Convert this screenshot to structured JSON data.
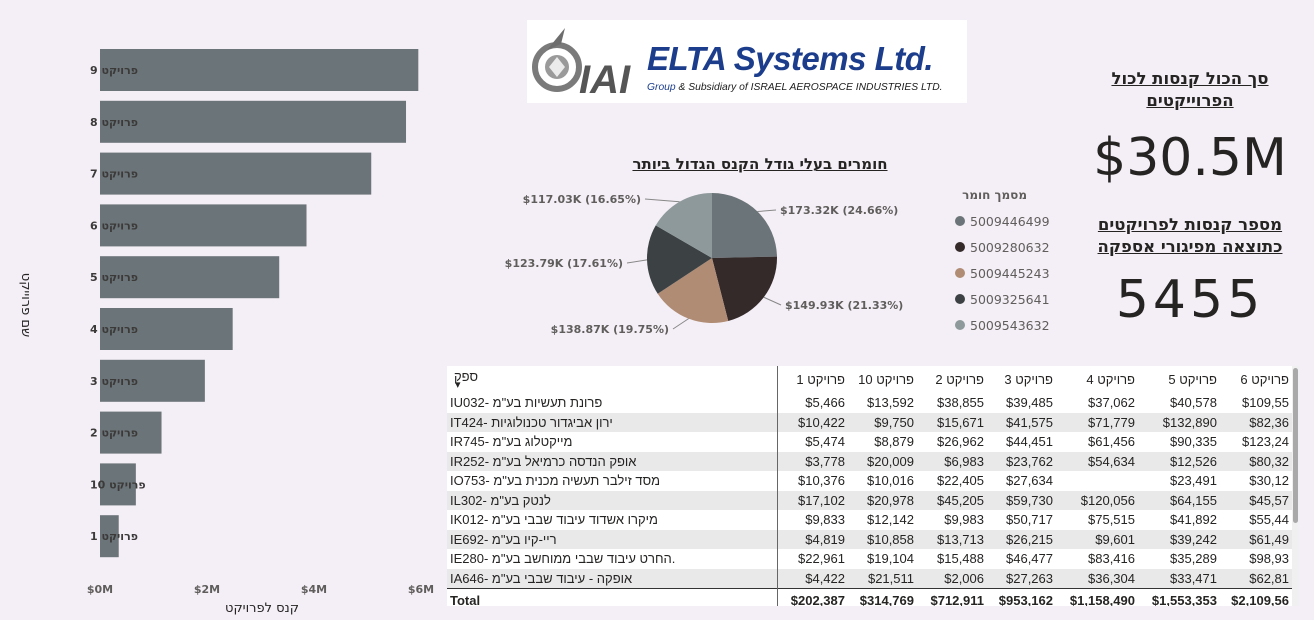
{
  "bar_chart": {
    "type": "bar",
    "orientation": "horizontal",
    "categories": [
      "פרויקט 9",
      "פרויקט 8",
      "פרויקט 7",
      "פרויקט 6",
      "פרויקט 5",
      "פרויקט 4",
      "פרויקט 3",
      "פרויקט 2",
      "פרויקט 10",
      "פרויקט 1"
    ],
    "values": [
      5.95,
      5.72,
      5.07,
      3.86,
      3.35,
      2.48,
      1.96,
      1.15,
      0.67,
      0.35
    ],
    "x_ticks": [
      "$0M",
      "$2M",
      "$4M",
      "$6M"
    ],
    "x_tick_values": [
      0,
      2,
      4,
      6
    ],
    "xlim": [
      0,
      6
    ],
    "xlabel": "קנס לפרויקט",
    "ylabel": "שם פרוייקט",
    "bar_color": "#6b7478"
  },
  "logo": {
    "mark": "IAI",
    "brand": "ELTA Systems Ltd.",
    "tagline_group": "Group",
    "tagline_rest": "& Subsidiary of ISRAEL AEROSPACE INDUSTRIES LTD."
  },
  "chart_data": {
    "type": "pie",
    "title": "חומרים בעלי גודל הקנס הגדול ביותר",
    "legend_title": "מסמך חומר",
    "slices": [
      {
        "name": "5009446499",
        "value": 173.32,
        "label": "$173.32K (24.66%)",
        "color": "#6b7478"
      },
      {
        "name": "5009280632",
        "value": 149.93,
        "label": "$149.93K (21.33%)",
        "color": "#342a2a"
      },
      {
        "name": "5009445243",
        "value": 138.87,
        "label": "$138.87K (19.75%)",
        "color": "#b08c74"
      },
      {
        "name": "5009325641",
        "value": 123.79,
        "label": "$123.79K (17.61%)",
        "color": "#3c4244"
      },
      {
        "name": "5009543632",
        "value": 117.03,
        "label": "$117.03K (16.65%)",
        "color": "#8e999c"
      }
    ]
  },
  "cards": {
    "total_fines_title": "סך הכול קנסות לכול הפרוייקטים",
    "total_fines_value": "$30.5M",
    "count_fines_title": "מספר קנסות לפרויקטים כתוצאה מפיגורי אספקה",
    "count_fines_value": "5455"
  },
  "table": {
    "columns": [
      "ספק",
      "פרויקט 1",
      "פרויקט 10",
      "פרויקט 2",
      "פרויקט 3",
      "פרויקט 4",
      "פרויקט 5",
      "פרויקט 6"
    ],
    "rows": [
      [
        "IU032- פרונת תעשיות בע\"מ",
        "$5,466",
        "$13,592",
        "$38,855",
        "$39,485",
        "$37,062",
        "$40,578",
        "$109,55"
      ],
      [
        "IT424- ירון אביגדור טכנולוגיות",
        "$10,422",
        "$9,750",
        "$15,671",
        "$41,575",
        "$71,779",
        "$132,890",
        "$82,36"
      ],
      [
        "IR745- מייקטלוג בע\"מ",
        "$5,474",
        "$8,879",
        "$26,962",
        "$44,451",
        "$61,456",
        "$90,335",
        "$123,24"
      ],
      [
        "IR252- אופק הנדסה כרמיאל בע\"מ",
        "$3,778",
        "$20,009",
        "$6,983",
        "$23,762",
        "$54,634",
        "$12,526",
        "$80,32"
      ],
      [
        "IO753- מסד זילבר תעשיה מכנית בע\"מ",
        "$10,376",
        "$10,016",
        "$22,405",
        "$27,634",
        "",
        "$23,491",
        "$30,12"
      ],
      [
        "IL302- לנטק בע\"מ",
        "$17,102",
        "$20,978",
        "$45,205",
        "$59,730",
        "$120,056",
        "$64,155",
        "$45,57"
      ],
      [
        "IK012- מיקרו אשדוד עיבוד שבבי בע\"מ",
        "$9,833",
        "$12,142",
        "$9,983",
        "$50,717",
        "$75,515",
        "$41,892",
        "$55,44"
      ],
      [
        "IE692- ריי-קיו בע\"מ",
        "$4,819",
        "$10,858",
        "$13,713",
        "$26,215",
        "$9,601",
        "$39,242",
        "$61,49"
      ],
      [
        "IE280- החרט עיבוד שבבי ממוחשב בע\"מ.",
        "$22,961",
        "$19,104",
        "$15,488",
        "$46,477",
        "$83,416",
        "$35,289",
        "$98,93"
      ],
      [
        "IA646- אופקה - עיבוד שבבי בע\"מ",
        "$4,422",
        "$21,511",
        "$2,006",
        "$27,263",
        "$36,304",
        "$33,471",
        "$62,81"
      ]
    ],
    "total": [
      "Total",
      "$202,387",
      "$314,769",
      "$712,911",
      "$953,162",
      "$1,158,490",
      "$1,553,353",
      "$2,109,56"
    ]
  }
}
